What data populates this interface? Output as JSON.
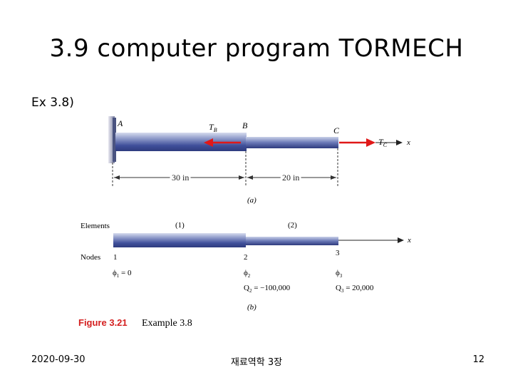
{
  "slide": {
    "title": "3.9 computer program TORMECH",
    "subtitle": "Ex 3.8)"
  },
  "figure": {
    "part_a": {
      "point_a": "A",
      "point_b": "B",
      "point_c": "C",
      "torque_b": "T",
      "torque_b_sub": "B",
      "torque_c": "T",
      "torque_c_sub": "C",
      "axis_label": "x",
      "dim_1": "30 in",
      "dim_2": "20 in",
      "caption": "(a)"
    },
    "part_b": {
      "elements_label": "Elements",
      "element_1": "(1)",
      "element_2": "(2)",
      "nodes_label": "Nodes",
      "node_1": "1",
      "node_2": "2",
      "node_3": "3",
      "phi_1": "ϕ",
      "phi_1_sub": "1",
      "phi_1_val": " = 0",
      "phi_2": "ϕ",
      "phi_2_sub": "2",
      "phi_3": "ϕ",
      "phi_3_sub": "3",
      "q2": "Q",
      "q2_sub": "2",
      "q2_val": " = −100,000",
      "q3": "Q",
      "q3_sub": "3",
      "q3_val": " = 20,000",
      "axis_label": "x",
      "caption": "(b)"
    },
    "figure_label": "Figure 3.21",
    "figure_caption": "Example 3.8",
    "colors": {
      "shaft": "#4a5fa8",
      "shaft_light": "#c9d0e8",
      "arrow_red": "#e01818",
      "figure_label": "#d42020"
    }
  },
  "footer": {
    "date": "2020-09-30",
    "center": "재료역학 3장",
    "page": "12"
  }
}
